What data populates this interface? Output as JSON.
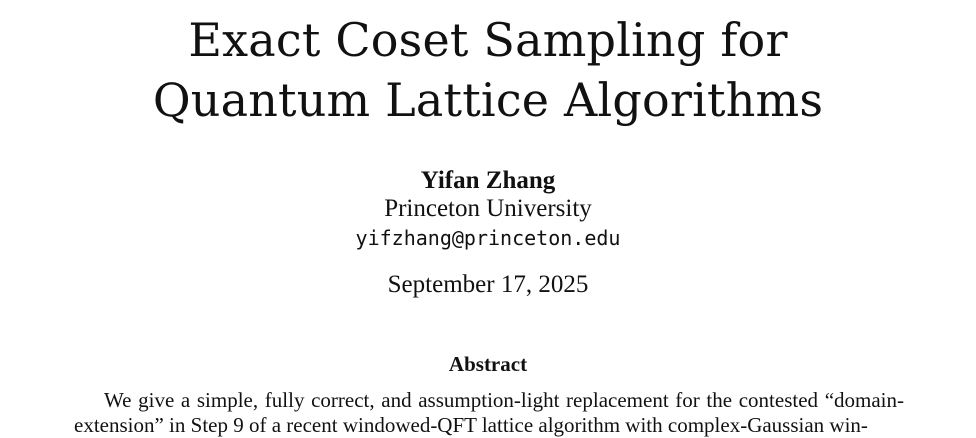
{
  "paper": {
    "title_line1": "Exact Coset Sampling for",
    "title_line2": "Quantum Lattice Algorithms",
    "author": "Yifan Zhang",
    "affiliation": "Princeton University",
    "email": "yifzhang@princeton.edu",
    "date": "September 17, 2025",
    "abstract_heading": "Abstract",
    "abstract_line1": "We give a simple, fully correct, and assumption-light replacement for the contested “domain-",
    "abstract_line2": "extension” in Step 9 of a recent windowed-QFT lattice algorithm with complex-Gaussian win-"
  }
}
